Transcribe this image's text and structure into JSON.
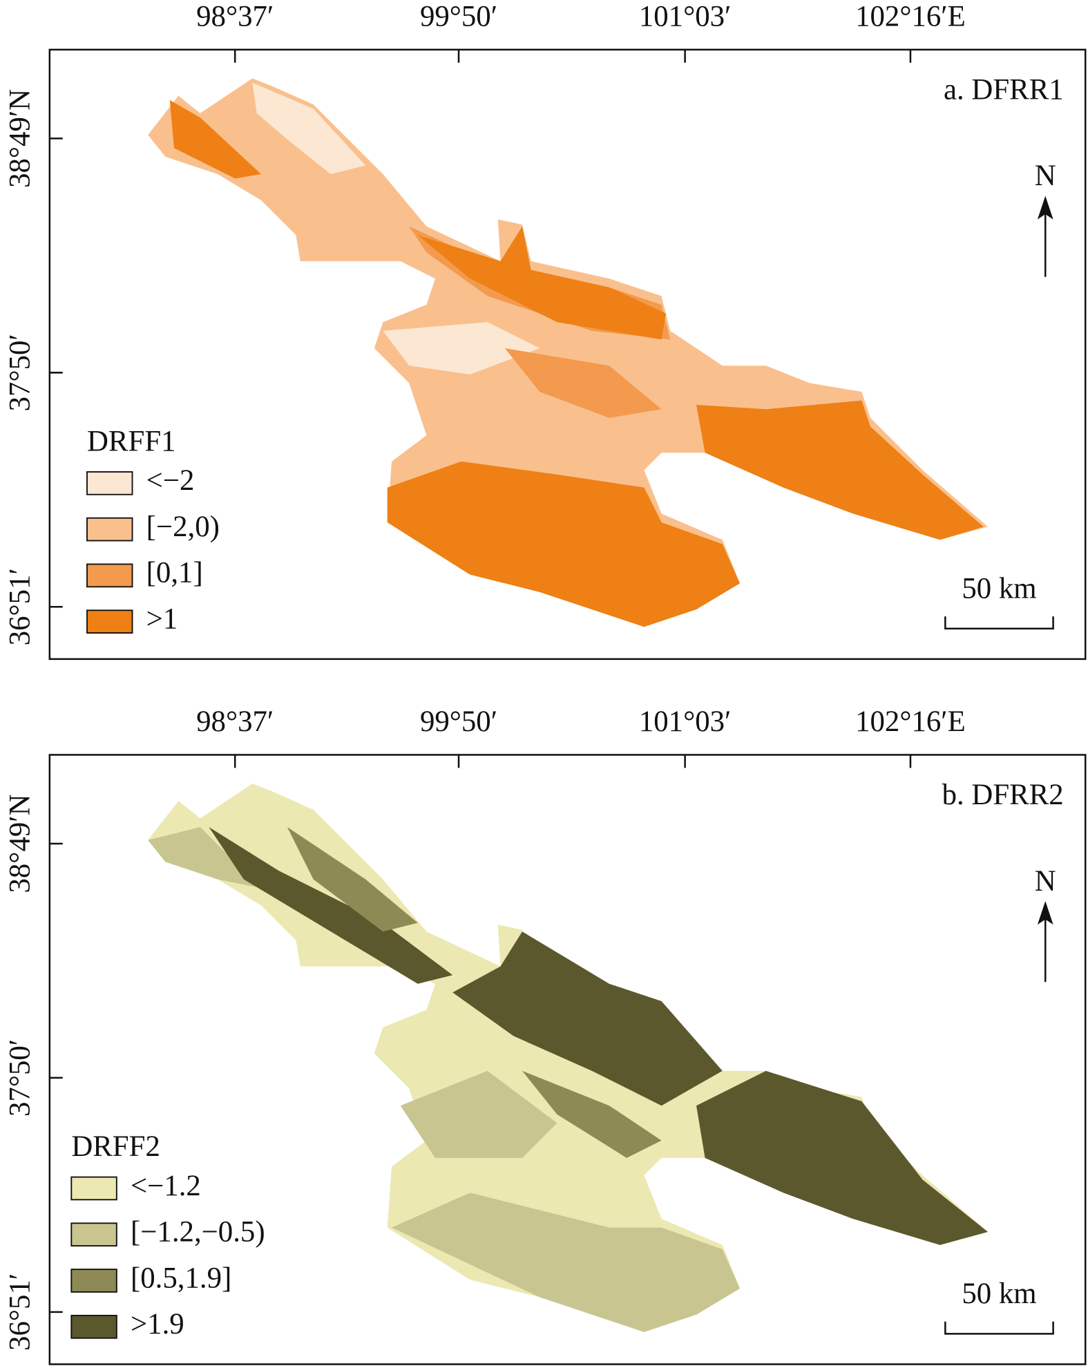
{
  "panels": [
    {
      "title": "a. DFRR1",
      "x_labels": [
        "98°37′",
        "99°50′",
        "101°03′",
        "102°16′E"
      ],
      "y_labels": [
        "38°49′N",
        "37°50′",
        "36°51′"
      ],
      "legend": {
        "title": "DRFF1",
        "items": [
          {
            "label": "<−2",
            "color": "#fce8d2"
          },
          {
            "label": "[−2,0)",
            "color": "#f9c08e"
          },
          {
            "label": "[0,1]",
            "color": "#f39a4e"
          },
          {
            "label": ">1",
            "color": "#ee8015"
          }
        ]
      },
      "north": "N",
      "scale": "50 km"
    },
    {
      "title": "b. DFRR2",
      "x_labels": [
        "98°37′",
        "99°50′",
        "101°03′",
        "102°16′E"
      ],
      "y_labels": [
        "38°49′N",
        "37°50′",
        "36°51′"
      ],
      "legend": {
        "title": "DRFF2",
        "items": [
          {
            "label": "<−1.2",
            "color": "#ece8b2"
          },
          {
            "label": "[−1.2,−0.5)",
            "color": "#c8c590"
          },
          {
            "label": "[0.5,1.9]",
            "color": "#8d8a55"
          },
          {
            "label": ">1.9",
            "color": "#5c582d"
          }
        ]
      },
      "north": "N",
      "scale": "50 km"
    }
  ]
}
